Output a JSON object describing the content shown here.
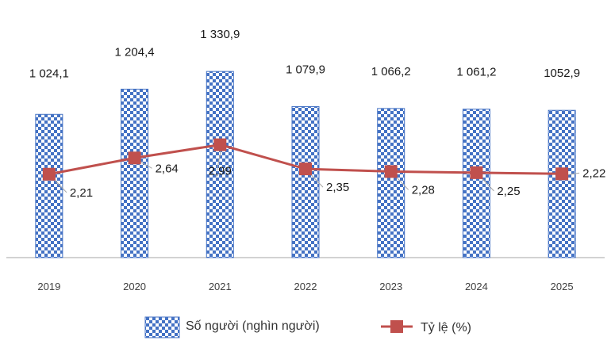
{
  "chart_data": {
    "type": "bar",
    "categories": [
      "2019",
      "2020",
      "2021",
      "2022",
      "2023",
      "2024",
      "2025"
    ],
    "series": [
      {
        "name": "Số người (nghìn người)",
        "kind": "bar",
        "values": [
          1024.1,
          1204.4,
          1330.9,
          1079.9,
          1066.2,
          1061.2,
          1052.9
        ],
        "labels": [
          "1 024,1",
          "1 204,4",
          "1 330,9",
          "1 079,9",
          "1 066,2",
          "1 061,2",
          "1052,9"
        ]
      },
      {
        "name": "Tỷ lệ (%)",
        "kind": "line",
        "values": [
          2.21,
          2.64,
          2.99,
          2.35,
          2.28,
          2.25,
          2.22
        ],
        "labels": [
          "2,21",
          "2,64",
          "2,99",
          "2,35",
          "2,28",
          "2,25",
          "2,22"
        ]
      }
    ],
    "ylim_bar": [
      0,
      1700
    ],
    "ylim_rate": [
      0,
      6.3
    ],
    "grid": false,
    "legend": "bottom",
    "colors": {
      "bar_pattern_fill": "#4472c4",
      "bar_pattern_bg": "#ffffff",
      "line": "#c0504d",
      "marker": "#c0504d",
      "axis": "#a6a6a6"
    }
  }
}
